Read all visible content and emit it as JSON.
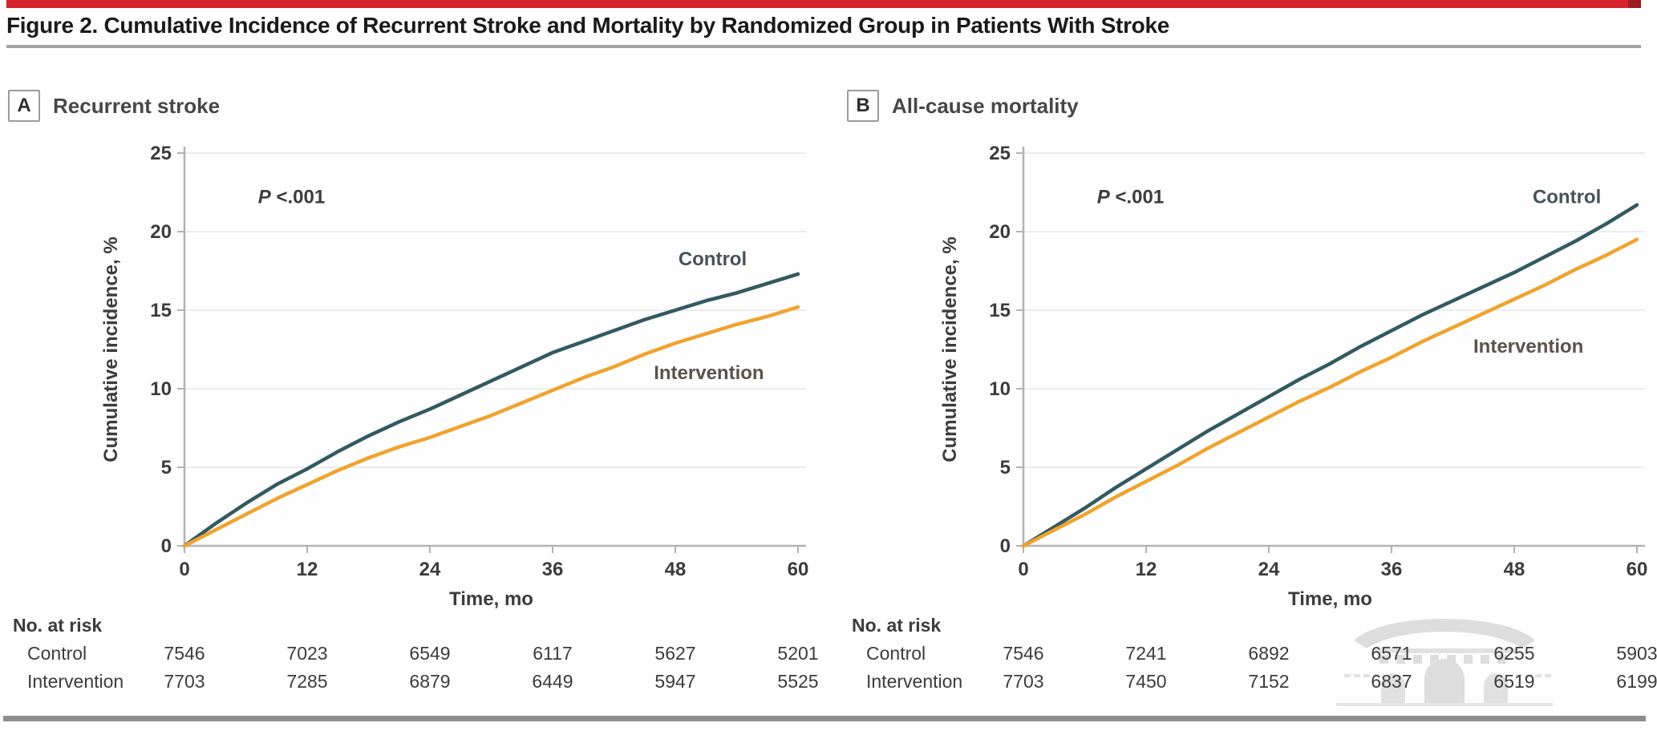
{
  "figure_title": "Figure 2. Cumulative Incidence of Recurrent Stroke and Mortality by Randomized Group in Patients With Stroke",
  "watermark_icon": "temple-gate-watermark",
  "colors": {
    "accent_bar": "#d6232b",
    "control_line": "#335a60",
    "intervention_line": "#f0a32e",
    "rule_gray": "#8e8e8e"
  },
  "chart_data": [
    {
      "type": "line",
      "panel_label": "A",
      "title": "Recurrent stroke",
      "p_value": {
        "italic": "P",
        "rest": " <.001",
        "x": 7.2,
        "y": 21.8
      },
      "xlabel": "Time, mo",
      "ylabel": "Cumulative incidence, %",
      "xlim": [
        0,
        60
      ],
      "ylim": [
        0,
        25
      ],
      "xticks": [
        0,
        12,
        24,
        36,
        48,
        60
      ],
      "yticks": [
        0,
        5,
        10,
        15,
        20,
        25
      ],
      "grid": "horizontal",
      "legend_position": "inline-labels",
      "x": [
        0,
        3,
        6,
        9,
        12,
        15,
        18,
        21,
        24,
        27,
        30,
        33,
        36,
        39,
        42,
        45,
        48,
        51,
        54,
        57,
        60
      ],
      "series": [
        {
          "name": "Control",
          "color": "#335a60",
          "label_color": "#46535a",
          "label_x": 48.3,
          "label_y": 17.85,
          "values": [
            0,
            1.4,
            2.7,
            3.9,
            4.9,
            6.0,
            7.0,
            7.9,
            8.7,
            9.6,
            10.5,
            11.4,
            12.3,
            13.0,
            13.7,
            14.4,
            15.0,
            15.6,
            16.1,
            16.7,
            17.3
          ]
        },
        {
          "name": "Intervention",
          "color": "#f0a32e",
          "label_color": "#5b5349",
          "label_x": 45.9,
          "label_y": 10.6,
          "values": [
            0,
            1.0,
            2.0,
            3.0,
            3.9,
            4.8,
            5.6,
            6.3,
            6.9,
            7.6,
            8.3,
            9.1,
            9.9,
            10.7,
            11.4,
            12.2,
            12.9,
            13.5,
            14.1,
            14.6,
            15.2
          ]
        }
      ],
      "risk_table": {
        "header": "No. at risk",
        "row_labels": [
          "Control",
          "Intervention"
        ],
        "columns_at": [
          0,
          12,
          24,
          36,
          48,
          60
        ],
        "rows": [
          [
            7546,
            7023,
            6549,
            6117,
            5627,
            5201
          ],
          [
            7703,
            7285,
            6879,
            6449,
            5947,
            5525
          ]
        ]
      },
      "has_watermark": false
    },
    {
      "type": "line",
      "panel_label": "B",
      "title": "All-cause mortality",
      "p_value": {
        "italic": "P",
        "rest": " <.001",
        "x": 7.2,
        "y": 21.8
      },
      "xlabel": "Time, mo",
      "ylabel": "Cumulative incidence, %",
      "xlim": [
        0,
        60
      ],
      "ylim": [
        0,
        25
      ],
      "xticks": [
        0,
        12,
        24,
        36,
        48,
        60
      ],
      "yticks": [
        0,
        5,
        10,
        15,
        20,
        25
      ],
      "grid": "horizontal",
      "legend_position": "inline-labels",
      "x": [
        0,
        3,
        6,
        9,
        12,
        15,
        18,
        21,
        24,
        27,
        30,
        33,
        36,
        39,
        42,
        45,
        48,
        51,
        54,
        57,
        60
      ],
      "series": [
        {
          "name": "Control",
          "color": "#335a60",
          "label_color": "#46535a",
          "label_x": 49.8,
          "label_y": 21.8,
          "values": [
            0,
            1.2,
            2.4,
            3.7,
            4.9,
            6.1,
            7.3,
            8.4,
            9.5,
            10.6,
            11.6,
            12.7,
            13.7,
            14.7,
            15.6,
            16.5,
            17.4,
            18.4,
            19.4,
            20.5,
            21.7
          ]
        },
        {
          "name": "Intervention",
          "color": "#f0a32e",
          "label_color": "#5b5349",
          "label_x": 44.0,
          "label_y": 12.3,
          "values": [
            0,
            1.0,
            2.0,
            3.1,
            4.1,
            5.1,
            6.2,
            7.2,
            8.2,
            9.2,
            10.1,
            11.1,
            12.0,
            13.0,
            13.9,
            14.8,
            15.7,
            16.6,
            17.6,
            18.5,
            19.5
          ]
        }
      ],
      "risk_table": {
        "header": "No. at risk",
        "row_labels": [
          "Control",
          "Intervention"
        ],
        "columns_at": [
          0,
          12,
          24,
          36,
          48,
          60
        ],
        "rows": [
          [
            7546,
            7241,
            6892,
            6571,
            6255,
            5903
          ],
          [
            7703,
            7450,
            7152,
            6837,
            6519,
            6199
          ]
        ]
      },
      "has_watermark": true
    }
  ]
}
